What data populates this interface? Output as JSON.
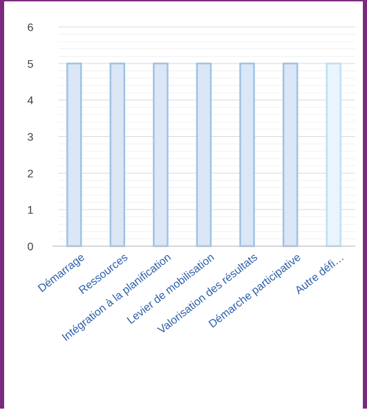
{
  "chart_data": {
    "type": "bar",
    "title": "",
    "xlabel": "",
    "ylabel": "",
    "categories": [
      "Démarrage",
      "Ressources",
      "Intégration à la planification",
      "Levier de mobilisation",
      "Valorisation des résultats",
      "Démarche participative",
      "Autre défi…"
    ],
    "values": [
      5,
      5,
      5,
      5,
      5,
      5,
      5
    ],
    "ylim": [
      0,
      6
    ],
    "yticks": [
      "0",
      "1",
      "2",
      "3",
      "4",
      "5",
      "6"
    ],
    "grid": true,
    "legend": "none"
  },
  "colors": {
    "frame": "#7b2a7f",
    "bar_fill": "#dbe7f6",
    "bar_stroke": "#9ec2e6",
    "last_bar_fill": "#e9f5fd",
    "last_bar_stroke": "#bddff3",
    "gridline": "#d9d9d9",
    "axis": "#bfbfbf",
    "tick_text": "#404040",
    "category_text": "#2b5fa8"
  }
}
